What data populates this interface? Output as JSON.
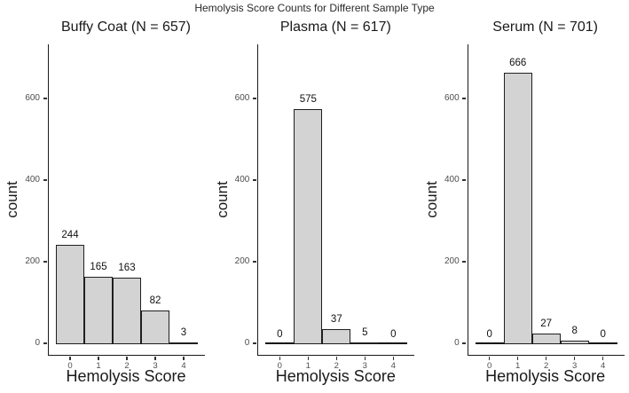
{
  "title": "Hemolysis Score Counts for Different Sample Type",
  "colors": {
    "bar_fill": "#d3d3d3",
    "bar_border": "#1f1f1f",
    "axis": "#1a1a1a",
    "tick_mark": "#333333",
    "tick_label": "#4d4d4d",
    "text": "#1a1a1a",
    "value_label": "#111111",
    "zero_line": "#111111",
    "background": "#ffffff"
  },
  "chart_data": [
    {
      "type": "bar",
      "title": "Buffy Coat (N = 657)",
      "categories": [
        "0",
        "1",
        "2",
        "3",
        "4"
      ],
      "values": [
        244,
        165,
        163,
        82,
        3
      ],
      "xlabel": "Hemolysis Score",
      "ylabel": "count",
      "yticks": [
        0,
        200,
        400,
        600
      ],
      "ylim": [
        0,
        730
      ],
      "grid": false,
      "legend": false
    },
    {
      "type": "bar",
      "title": "Plasma (N = 617)",
      "categories": [
        "0",
        "1",
        "2",
        "3",
        "4"
      ],
      "values": [
        0,
        575,
        37,
        5,
        0
      ],
      "xlabel": "Hemolysis Score",
      "ylabel": "count",
      "yticks": [
        0,
        200,
        400,
        600
      ],
      "ylim": [
        0,
        730
      ],
      "grid": false,
      "legend": false
    },
    {
      "type": "bar",
      "title": "Serum (N = 701)",
      "categories": [
        "0",
        "1",
        "2",
        "3",
        "4"
      ],
      "values": [
        0,
        666,
        27,
        8,
        0
      ],
      "xlabel": "Hemolysis Score",
      "ylabel": "count",
      "yticks": [
        0,
        200,
        400,
        600
      ],
      "ylim": [
        0,
        730
      ],
      "grid": false,
      "legend": false
    }
  ]
}
